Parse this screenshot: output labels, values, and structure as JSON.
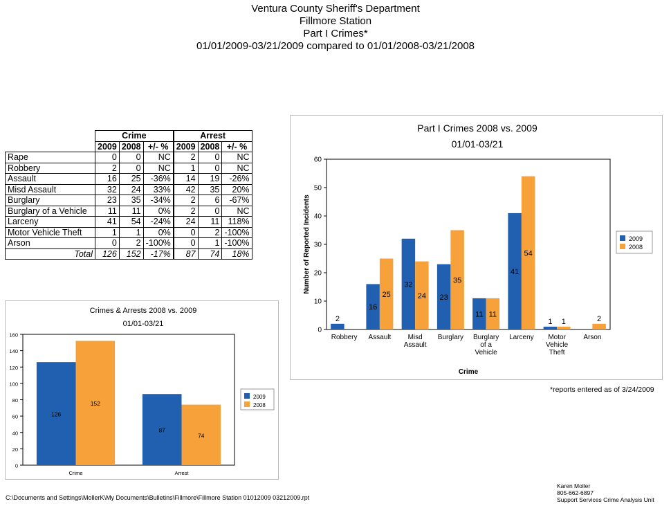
{
  "header": {
    "line1": "Ventura County Sheriff's Department",
    "line2": "Fillmore Station",
    "line3": "Part I Crimes*",
    "line4": "01/01/2009-03/21/2009 compared to 01/01/2008-03/21/2008"
  },
  "table": {
    "group_crime": "Crime",
    "group_arrest": "Arrest",
    "col_2009": "2009",
    "col_2008": "2008",
    "col_pct": "+/- %",
    "rows": [
      {
        "label": "Rape",
        "c09": "0",
        "c08": "0",
        "cp": "NC",
        "a09": "2",
        "a08": "0",
        "ap": "NC"
      },
      {
        "label": "Robbery",
        "c09": "2",
        "c08": "0",
        "cp": "NC",
        "a09": "1",
        "a08": "0",
        "ap": "NC"
      },
      {
        "label": "Assault",
        "c09": "16",
        "c08": "25",
        "cp": "-36%",
        "a09": "14",
        "a08": "19",
        "ap": "-26%"
      },
      {
        "label": "Misd  Assault",
        "c09": "32",
        "c08": "24",
        "cp": "33%",
        "a09": "42",
        "a08": "35",
        "ap": "20%"
      },
      {
        "label": "Burglary",
        "c09": "23",
        "c08": "35",
        "cp": "-34%",
        "a09": "2",
        "a08": "6",
        "ap": "-67%"
      },
      {
        "label": "Burglary of a Vehicle",
        "c09": "11",
        "c08": "11",
        "cp": "0%",
        "a09": "2",
        "a08": "0",
        "ap": "NC"
      },
      {
        "label": "Larceny",
        "c09": "41",
        "c08": "54",
        "cp": "-24%",
        "a09": "24",
        "a08": "11",
        "ap": "118%"
      },
      {
        "label": "Motor Vehicle Theft",
        "c09": "1",
        "c08": "1",
        "cp": "0%",
        "a09": "0",
        "a08": "2",
        "ap": "-100%"
      },
      {
        "label": "Arson",
        "c09": "0",
        "c08": "2",
        "cp": "-100%",
        "a09": "0",
        "a08": "1",
        "ap": "-100%"
      }
    ],
    "total": {
      "label": "Total",
      "c09": "126",
      "c08": "152",
      "cp": "-17%",
      "a09": "87",
      "a08": "74",
      "ap": "18%"
    }
  },
  "chart_data": [
    {
      "type": "bar",
      "title": "Part I Crimes 2008 vs. 2009",
      "subtitle": "01/01-03/21",
      "xlabel": "Crime",
      "ylabel": "Number of Reported Incidents",
      "ylim": [
        0,
        60
      ],
      "yticks": [
        0,
        10,
        20,
        30,
        40,
        50,
        60
      ],
      "categories": [
        "Robbery",
        "Assault",
        "Misd Assault",
        "Burglary",
        "Burglary of a Vehicle",
        "Larceny",
        "Motor Vehicle Theft",
        "Arson"
      ],
      "category_lines": [
        [
          "Robbery"
        ],
        [
          "Assault"
        ],
        [
          "Misd",
          "Assault"
        ],
        [
          "Burglary"
        ],
        [
          "Burglary",
          "of a",
          "Vehicle"
        ],
        [
          "Larceny"
        ],
        [
          "Motor",
          "Vehicle",
          "Theft"
        ],
        [
          "Arson"
        ]
      ],
      "series": [
        {
          "name": "2009",
          "color": "#2160b0",
          "values": [
            2,
            16,
            32,
            23,
            11,
            41,
            1,
            0
          ]
        },
        {
          "name": "2008",
          "color": "#f7a13b",
          "values": [
            0,
            25,
            24,
            35,
            11,
            54,
            1,
            2
          ]
        }
      ],
      "legend": "right",
      "grid": false
    },
    {
      "type": "bar",
      "title": "Crimes & Arrests 2008 vs. 2009",
      "subtitle": "01/01-03/21",
      "ylim": [
        0,
        160
      ],
      "yticks": [
        0,
        20,
        40,
        60,
        80,
        100,
        120,
        140,
        160
      ],
      "categories": [
        "Crime",
        "Arrest"
      ],
      "series": [
        {
          "name": "2009",
          "color": "#2160b0",
          "values": [
            126,
            87
          ]
        },
        {
          "name": "2008",
          "color": "#f7a13b",
          "values": [
            152,
            74
          ]
        }
      ],
      "legend": "right",
      "grid": false
    }
  ],
  "note": "*reports entered as of 3/24/2009",
  "footer_path": "C:\\Documents and Settings\\MollerK\\My Documents\\Bulletins\\Fillmore\\Fillmore Station 01012009 03212009.rpt",
  "signature": {
    "name": "Karen Moller",
    "phone": "805-662-6897",
    "unit": "Support Services Crime Analysis Unit"
  }
}
